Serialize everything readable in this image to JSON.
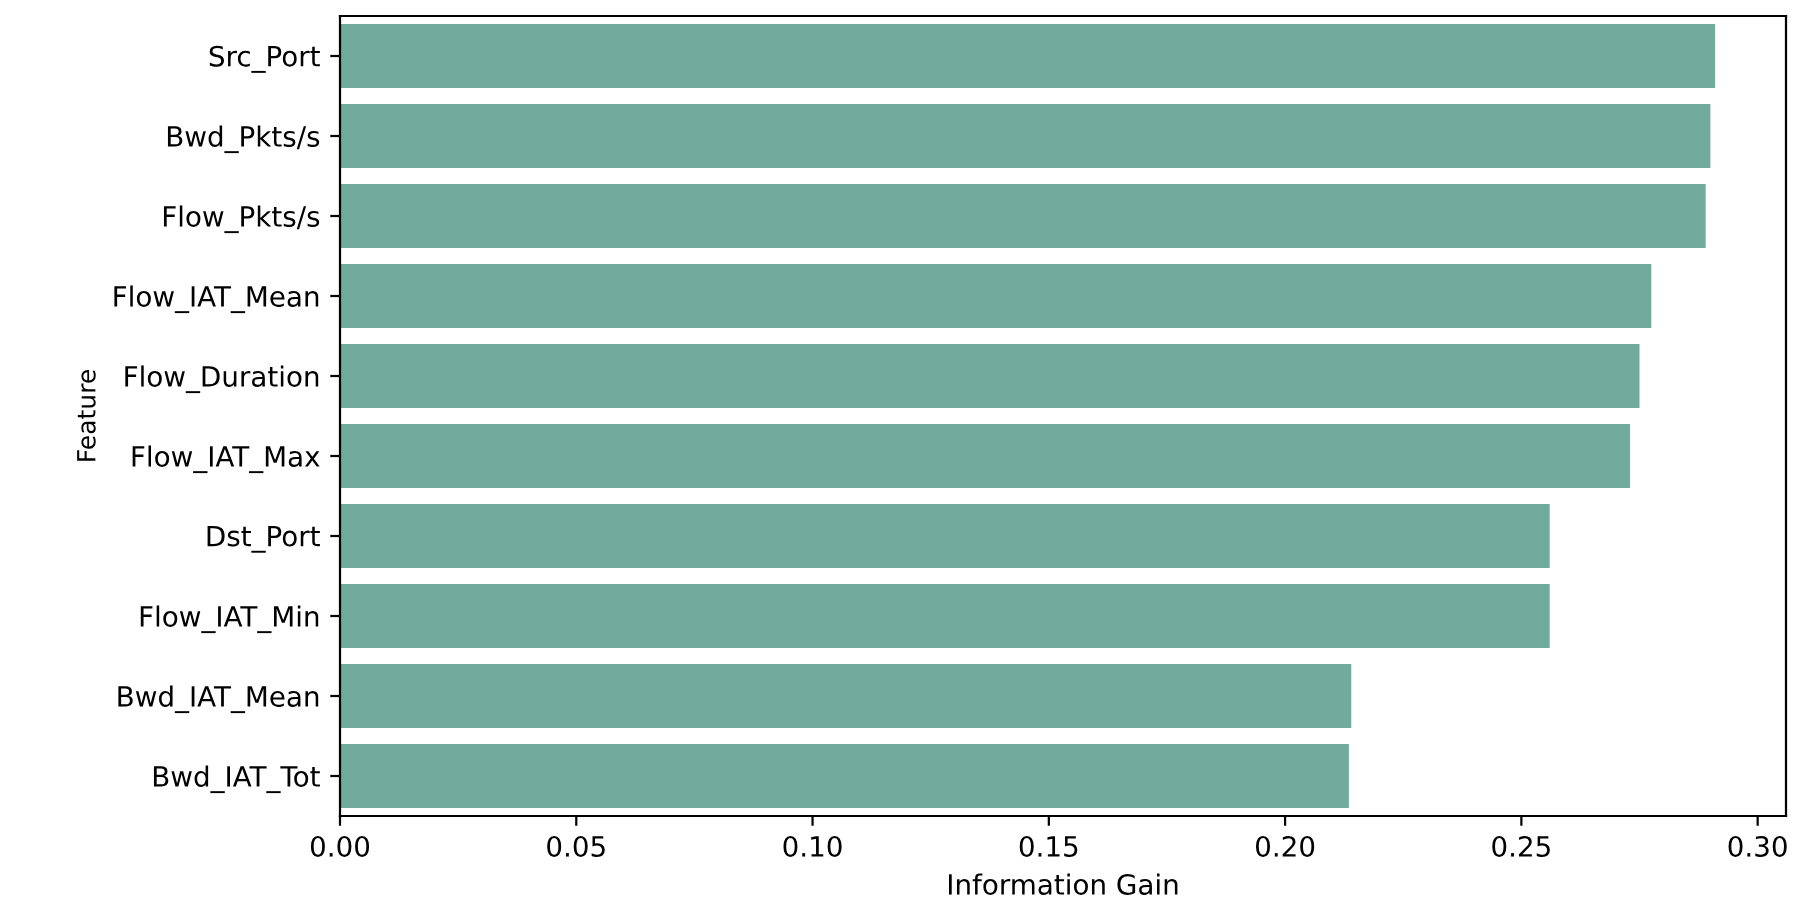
{
  "chart_data": {
    "type": "bar",
    "orientation": "horizontal",
    "xlabel": "Information Gain",
    "ylabel": "Feature",
    "categories": [
      "Src_Port",
      "Bwd_Pkts/s",
      "Flow_Pkts/s",
      "Flow_IAT_Mean",
      "Flow_Duration",
      "Flow_IAT_Max",
      "Dst_Port",
      "Flow_IAT_Min",
      "Bwd_IAT_Mean",
      "Bwd_IAT_Tot"
    ],
    "values": [
      0.291,
      0.29,
      0.289,
      0.2775,
      0.275,
      0.273,
      0.256,
      0.256,
      0.214,
      0.2135
    ],
    "color": "#70ab9c",
    "xlim": [
      0,
      0.306
    ],
    "xticks": [
      {
        "value": 0,
        "label": "0.00"
      },
      {
        "value": 0.05,
        "label": "0.05"
      },
      {
        "value": 0.1,
        "label": "0.10"
      },
      {
        "value": 0.15,
        "label": "0.15"
      },
      {
        "value": 0.2,
        "label": "0.20"
      },
      {
        "value": 0.25,
        "label": "0.25"
      },
      {
        "value": 0.3,
        "label": "0.30"
      }
    ],
    "grid": false
  }
}
